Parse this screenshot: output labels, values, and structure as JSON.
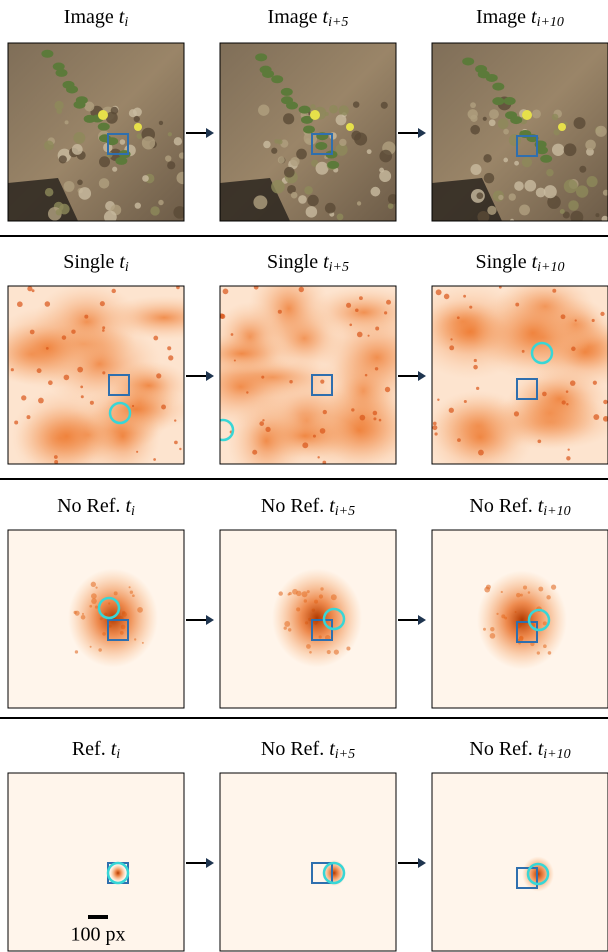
{
  "rows": [
    {
      "panels": [
        {
          "label": "Image",
          "var": "t",
          "sub": "i"
        },
        {
          "label": "Image",
          "var": "t",
          "sub": "i+5"
        },
        {
          "label": "Image",
          "var": "t",
          "sub": "i+10"
        }
      ]
    },
    {
      "panels": [
        {
          "label": "Single",
          "var": "t",
          "sub": "i"
        },
        {
          "label": "Single",
          "var": "t",
          "sub": "i+5"
        },
        {
          "label": "Single",
          "var": "t",
          "sub": "i+10"
        }
      ]
    },
    {
      "panels": [
        {
          "label": "No Ref.",
          "var": "t",
          "sub": "i"
        },
        {
          "label": "No Ref.",
          "var": "t",
          "sub": "i+5"
        },
        {
          "label": "No Ref.",
          "var": "t",
          "sub": "i+10"
        }
      ]
    },
    {
      "panels": [
        {
          "label": "Ref.",
          "var": "t",
          "sub": "i"
        },
        {
          "label": "No Ref.",
          "var": "t",
          "sub": "i+5"
        },
        {
          "label": "No Ref.",
          "var": "t",
          "sub": "i+10"
        }
      ]
    }
  ],
  "scale_bar": "100 px"
}
